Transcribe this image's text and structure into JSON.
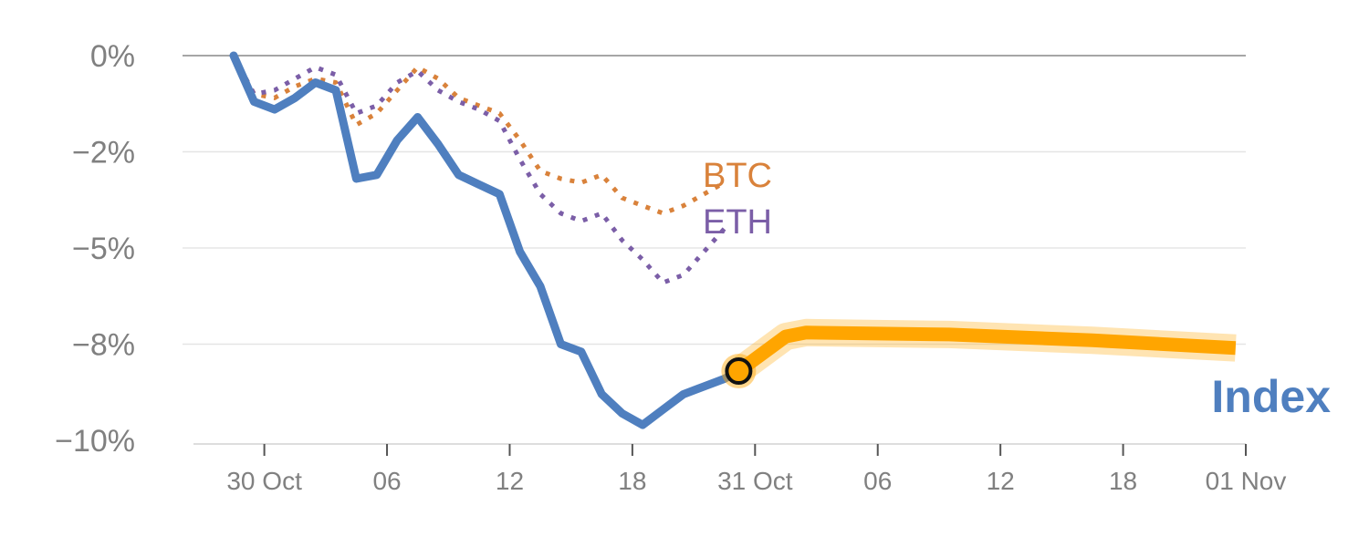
{
  "chart_data": {
    "type": "line",
    "title": "",
    "xlabel": "",
    "ylabel": "",
    "ylim": [
      -10,
      0
    ],
    "y_ticks": [
      {
        "value": 0,
        "label": "0%"
      },
      {
        "value": -2.5,
        "label": "−2%"
      },
      {
        "value": -5,
        "label": "−5%"
      },
      {
        "value": -7.5,
        "label": "−8%"
      },
      {
        "value": -10,
        "label": "−10%"
      }
    ],
    "x_ticks": [
      {
        "x": 1.5,
        "label": "30 Oct"
      },
      {
        "x": 7.5,
        "label": "06"
      },
      {
        "x": 13.5,
        "label": "12"
      },
      {
        "x": 19.5,
        "label": "18"
      },
      {
        "x": 25.5,
        "label": "31 Oct"
      },
      {
        "x": 31.5,
        "label": "06"
      },
      {
        "x": 37.5,
        "label": "12"
      },
      {
        "x": 43.5,
        "label": "18"
      },
      {
        "x": 49.5,
        "label": "01 Nov"
      }
    ],
    "xlim": [
      -2.5,
      49.5
    ],
    "grid": true,
    "series": [
      {
        "name": "BTC",
        "color": "#d9823b",
        "style": "dotted",
        "x": [
          0,
          1,
          2,
          3,
          4,
          5,
          6,
          7,
          8,
          9,
          10,
          11,
          12,
          13,
          14,
          15,
          16,
          17,
          18,
          19,
          20,
          21,
          22,
          23,
          24
        ],
        "y": [
          0,
          -1.0,
          -1.1,
          -0.8,
          -0.6,
          -0.7,
          -1.8,
          -1.5,
          -0.9,
          -0.3,
          -0.6,
          -1.1,
          -1.3,
          -1.5,
          -2.2,
          -3.0,
          -3.2,
          -3.3,
          -3.1,
          -3.7,
          -3.9,
          -4.1,
          -3.9,
          -3.6,
          -3.3
        ]
      },
      {
        "name": "ETH",
        "color": "#7b5ea7",
        "style": "dotted",
        "x": [
          0,
          1,
          2,
          3,
          4,
          5,
          6,
          7,
          8,
          9,
          10,
          11,
          12,
          13,
          14,
          15,
          16,
          17,
          18,
          19,
          20,
          21,
          22,
          23,
          24
        ],
        "y": [
          0,
          -1.0,
          -0.9,
          -0.6,
          -0.3,
          -0.5,
          -1.5,
          -1.3,
          -0.7,
          -0.4,
          -0.9,
          -1.2,
          -1.4,
          -1.7,
          -2.7,
          -3.6,
          -4.1,
          -4.3,
          -4.1,
          -4.8,
          -5.3,
          -5.9,
          -5.7,
          -5.1,
          -4.5
        ]
      },
      {
        "name": "Index",
        "color": "#4f7fbf",
        "style": "solid",
        "x": [
          0,
          1,
          2,
          3,
          4,
          5,
          6,
          7,
          8,
          9,
          10,
          11,
          12,
          13,
          14,
          15,
          16,
          17,
          18,
          19,
          20,
          21,
          22,
          23,
          24,
          24.7
        ],
        "y": [
          0,
          -1.2,
          -1.4,
          -1.1,
          -0.7,
          -0.9,
          -3.2,
          -3.1,
          -2.2,
          -1.6,
          -2.3,
          -3.1,
          -3.35,
          -3.6,
          -5.1,
          -6.0,
          -7.5,
          -7.7,
          -8.8,
          -9.3,
          -9.6,
          -9.2,
          -8.8,
          -8.6,
          -8.4,
          -8.2
        ]
      },
      {
        "name": "",
        "color": "#ffa500",
        "style": "projection",
        "x": [
          24.7,
          27,
          28,
          35,
          42,
          49
        ],
        "y": [
          -8.2,
          -7.3,
          -7.2,
          -7.25,
          -7.4,
          -7.6
        ]
      }
    ],
    "marker": {
      "x": 24.7,
      "y": -8.2
    },
    "annotations": [
      {
        "text": "BTC",
        "color": "#d9823b"
      },
      {
        "text": "ETH",
        "color": "#7b5ea7"
      },
      {
        "text": "Index",
        "color": "#4f7fbf"
      }
    ]
  }
}
